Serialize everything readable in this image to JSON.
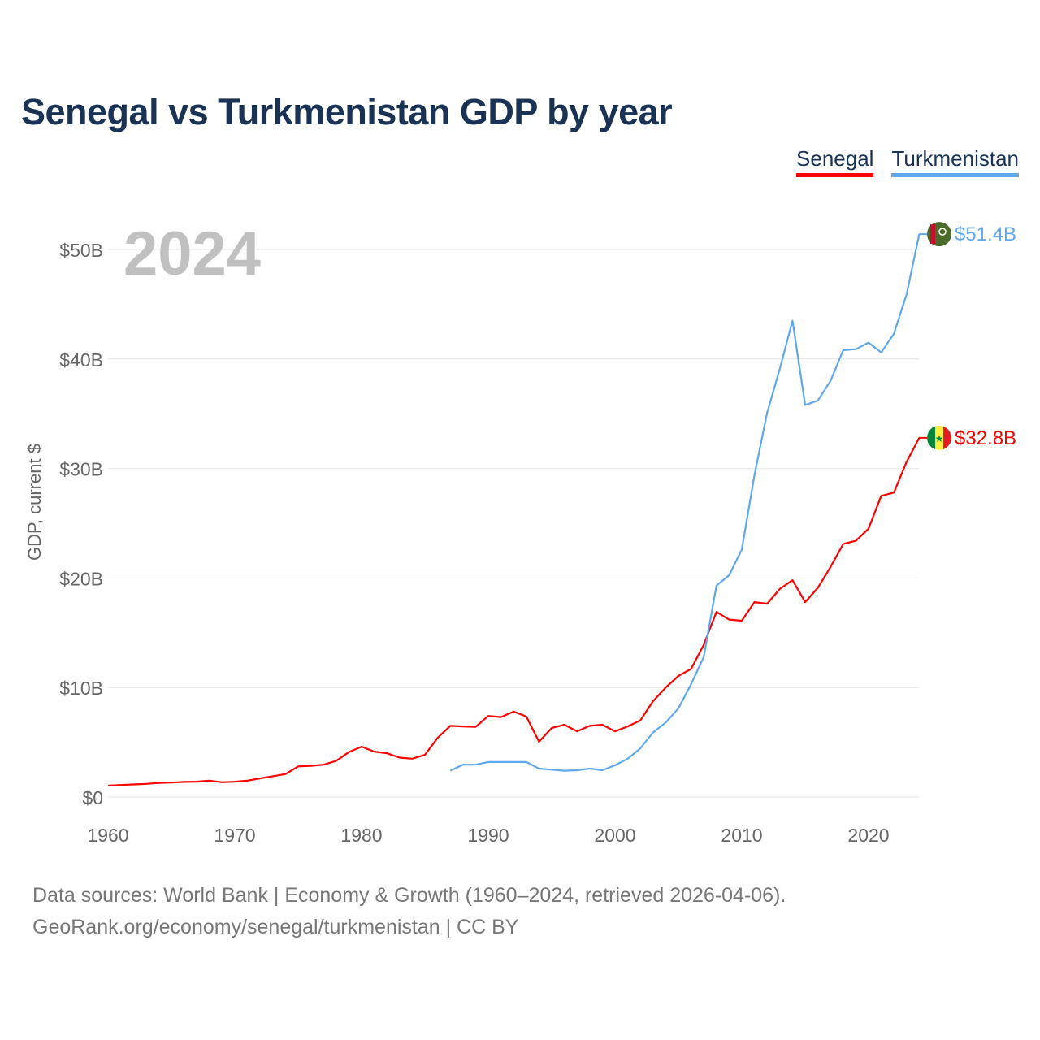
{
  "chart_data": {
    "type": "line",
    "title": "Senegal vs Turkmenistan GDP by year",
    "xlabel": "",
    "ylabel": "GDP, current $",
    "year_label": "2024",
    "xlim": [
      1960,
      2024
    ],
    "ylim": [
      0,
      55
    ],
    "x_ticks": [
      1960,
      1970,
      1980,
      1990,
      2000,
      2010,
      2020
    ],
    "y_ticks": [
      0,
      10,
      20,
      30,
      40,
      50
    ],
    "y_tick_labels": [
      "$0",
      "$10B",
      "$20B",
      "$30B",
      "$40B",
      "$50B"
    ],
    "grid": true,
    "legend_position": "top-right",
    "series": [
      {
        "name": "Senegal",
        "color": "#ff0000",
        "end_label": "$32.8B",
        "start_year": 1960,
        "values": [
          1.04,
          1.1,
          1.15,
          1.2,
          1.28,
          1.32,
          1.38,
          1.4,
          1.5,
          1.35,
          1.4,
          1.5,
          1.7,
          1.9,
          2.1,
          2.8,
          2.85,
          2.95,
          3.3,
          4.1,
          4.6,
          4.15,
          4.0,
          3.6,
          3.5,
          3.85,
          5.4,
          6.5,
          6.45,
          6.4,
          7.4,
          7.3,
          7.8,
          7.35,
          5.05,
          6.3,
          6.6,
          6.0,
          6.5,
          6.6,
          6.0,
          6.45,
          7.0,
          8.75,
          10.0,
          11.05,
          11.7,
          13.9,
          16.9,
          16.2,
          16.1,
          17.8,
          17.65,
          19.0,
          19.8,
          17.8,
          19.1,
          21.0,
          23.1,
          23.4,
          24.5,
          27.5,
          27.8,
          30.6,
          32.8
        ]
      },
      {
        "name": "Turkmenistan",
        "color": "#5fa8ee",
        "end_label": "$51.4B",
        "start_year": 1987,
        "values": [
          2.4,
          2.95,
          2.95,
          3.2,
          3.2,
          3.2,
          3.2,
          2.6,
          2.5,
          2.4,
          2.45,
          2.6,
          2.45,
          2.9,
          3.5,
          4.45,
          5.9,
          6.8,
          8.1,
          10.3,
          12.8,
          19.3,
          20.25,
          22.6,
          29.4,
          35.1,
          39.1,
          43.5,
          35.8,
          36.2,
          38.0,
          40.8,
          40.9,
          41.5,
          40.6,
          42.3,
          45.9,
          51.4
        ]
      }
    ]
  },
  "footer": {
    "line1": "Data sources: World Bank | Economy & Growth (1960–2024, retrieved 2026-04-06).",
    "line2": "GeoRank.org/economy/senegal/turkmenistan | CC BY"
  }
}
